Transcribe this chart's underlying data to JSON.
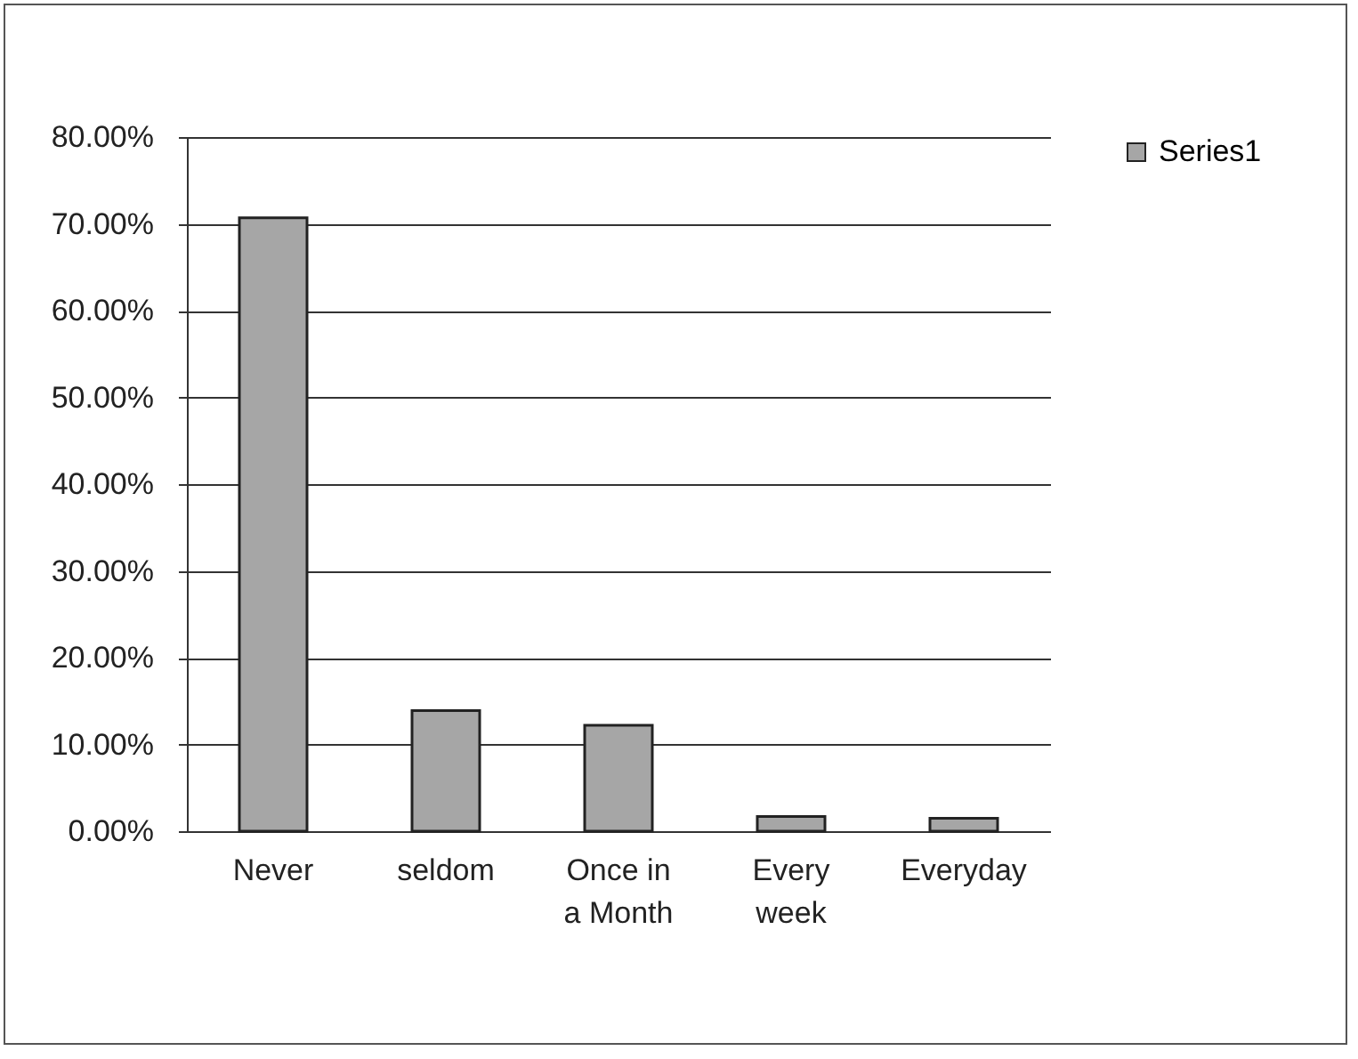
{
  "chart_data": {
    "type": "bar",
    "categories": [
      "Never",
      "seldom",
      "Once in a Month",
      "Every week",
      "Everyday"
    ],
    "series": [
      {
        "name": "Series1",
        "color": "#a6a6a6",
        "values": [
          70.7,
          13.9,
          12.2,
          1.7,
          1.5
        ]
      }
    ],
    "ylim": [
      0,
      80
    ],
    "yticks": [
      {
        "value": 0,
        "label": "0.00%"
      },
      {
        "value": 10,
        "label": "10.00%"
      },
      {
        "value": 20,
        "label": "20.00%"
      },
      {
        "value": 30,
        "label": "30.00%"
      },
      {
        "value": 40,
        "label": "40.00%"
      },
      {
        "value": 50,
        "label": "50.00%"
      },
      {
        "value": 60,
        "label": "60.00%"
      },
      {
        "value": 70,
        "label": "70.00%"
      },
      {
        "value": 80,
        "label": "80.00%"
      }
    ],
    "grid": "y",
    "legend": "right"
  }
}
